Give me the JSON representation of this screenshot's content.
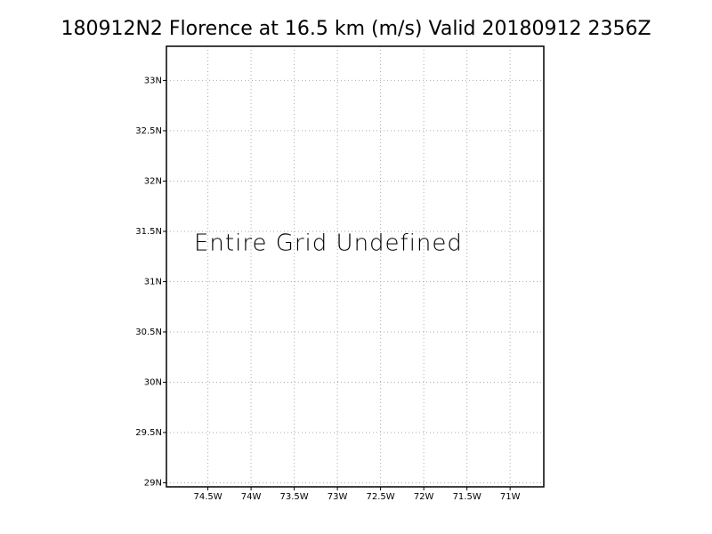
{
  "chart_data": {
    "type": "map",
    "title": "180912N2 Florence at 16.5 km (m/s) Valid 20180912 2356Z",
    "annotation": "Entire Grid Undefined",
    "xlim": [
      -74.98,
      -70.61
    ],
    "ylim": [
      28.96,
      33.34
    ],
    "xticks": [
      {
        "value": -74.5,
        "label": "74.5W"
      },
      {
        "value": -74,
        "label": "74W"
      },
      {
        "value": -73.5,
        "label": "73.5W"
      },
      {
        "value": -73,
        "label": "73W"
      },
      {
        "value": -72.5,
        "label": "72.5W"
      },
      {
        "value": -72,
        "label": "72W"
      },
      {
        "value": -71.5,
        "label": "71.5W"
      },
      {
        "value": -71,
        "label": "71W"
      }
    ],
    "yticks": [
      {
        "value": 29,
        "label": "29N"
      },
      {
        "value": 29.5,
        "label": "29.5N"
      },
      {
        "value": 30,
        "label": "30N"
      },
      {
        "value": 30.5,
        "label": "30.5N"
      },
      {
        "value": 31,
        "label": "31N"
      },
      {
        "value": 31.5,
        "label": "31.5N"
      },
      {
        "value": 32,
        "label": "32N"
      },
      {
        "value": 32.5,
        "label": "32.5N"
      },
      {
        "value": 33,
        "label": "33N"
      }
    ],
    "grid": true
  }
}
